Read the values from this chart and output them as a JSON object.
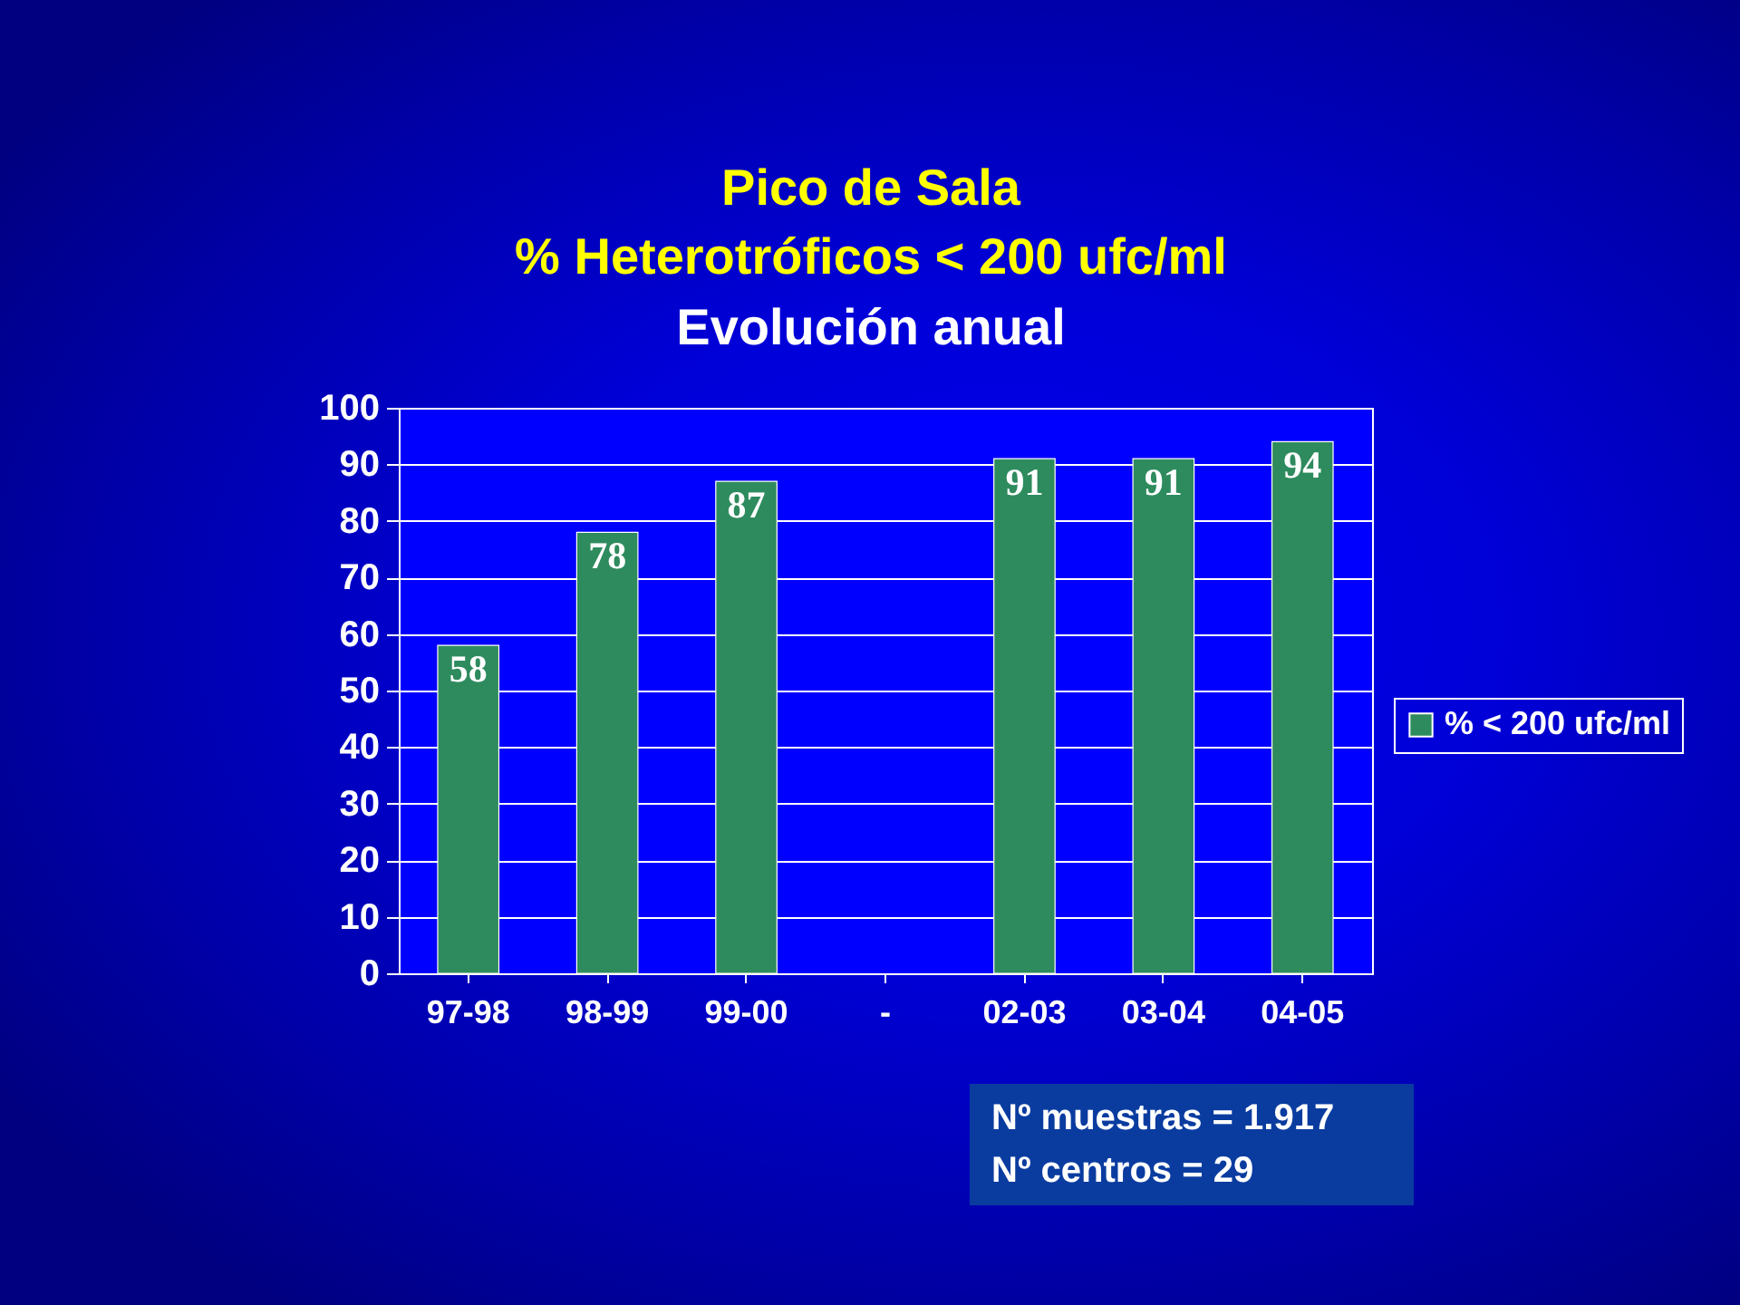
{
  "chart_data": {
    "type": "bar",
    "title": "Pico de Sala\n% Heterotróficos < 200 ufc/ml",
    "subtitle": "Evolución anual",
    "categories": [
      "97-98",
      "98-99",
      "99-00",
      "-",
      "02-03",
      "03-04",
      "04-05"
    ],
    "series": [
      {
        "name": "% < 200 ufc/ml",
        "color": "#2e8b5e",
        "values": [
          58,
          78,
          87,
          null,
          91,
          91,
          94
        ]
      }
    ],
    "ylim": [
      0,
      100
    ],
    "yticks": [
      0,
      10,
      20,
      30,
      40,
      50,
      60,
      70,
      80,
      90,
      100
    ],
    "grid": "y",
    "legend": "right",
    "data_labels": true,
    "annotations": [
      "Nº muestras = 1.917",
      "Nº centros = 29"
    ]
  }
}
